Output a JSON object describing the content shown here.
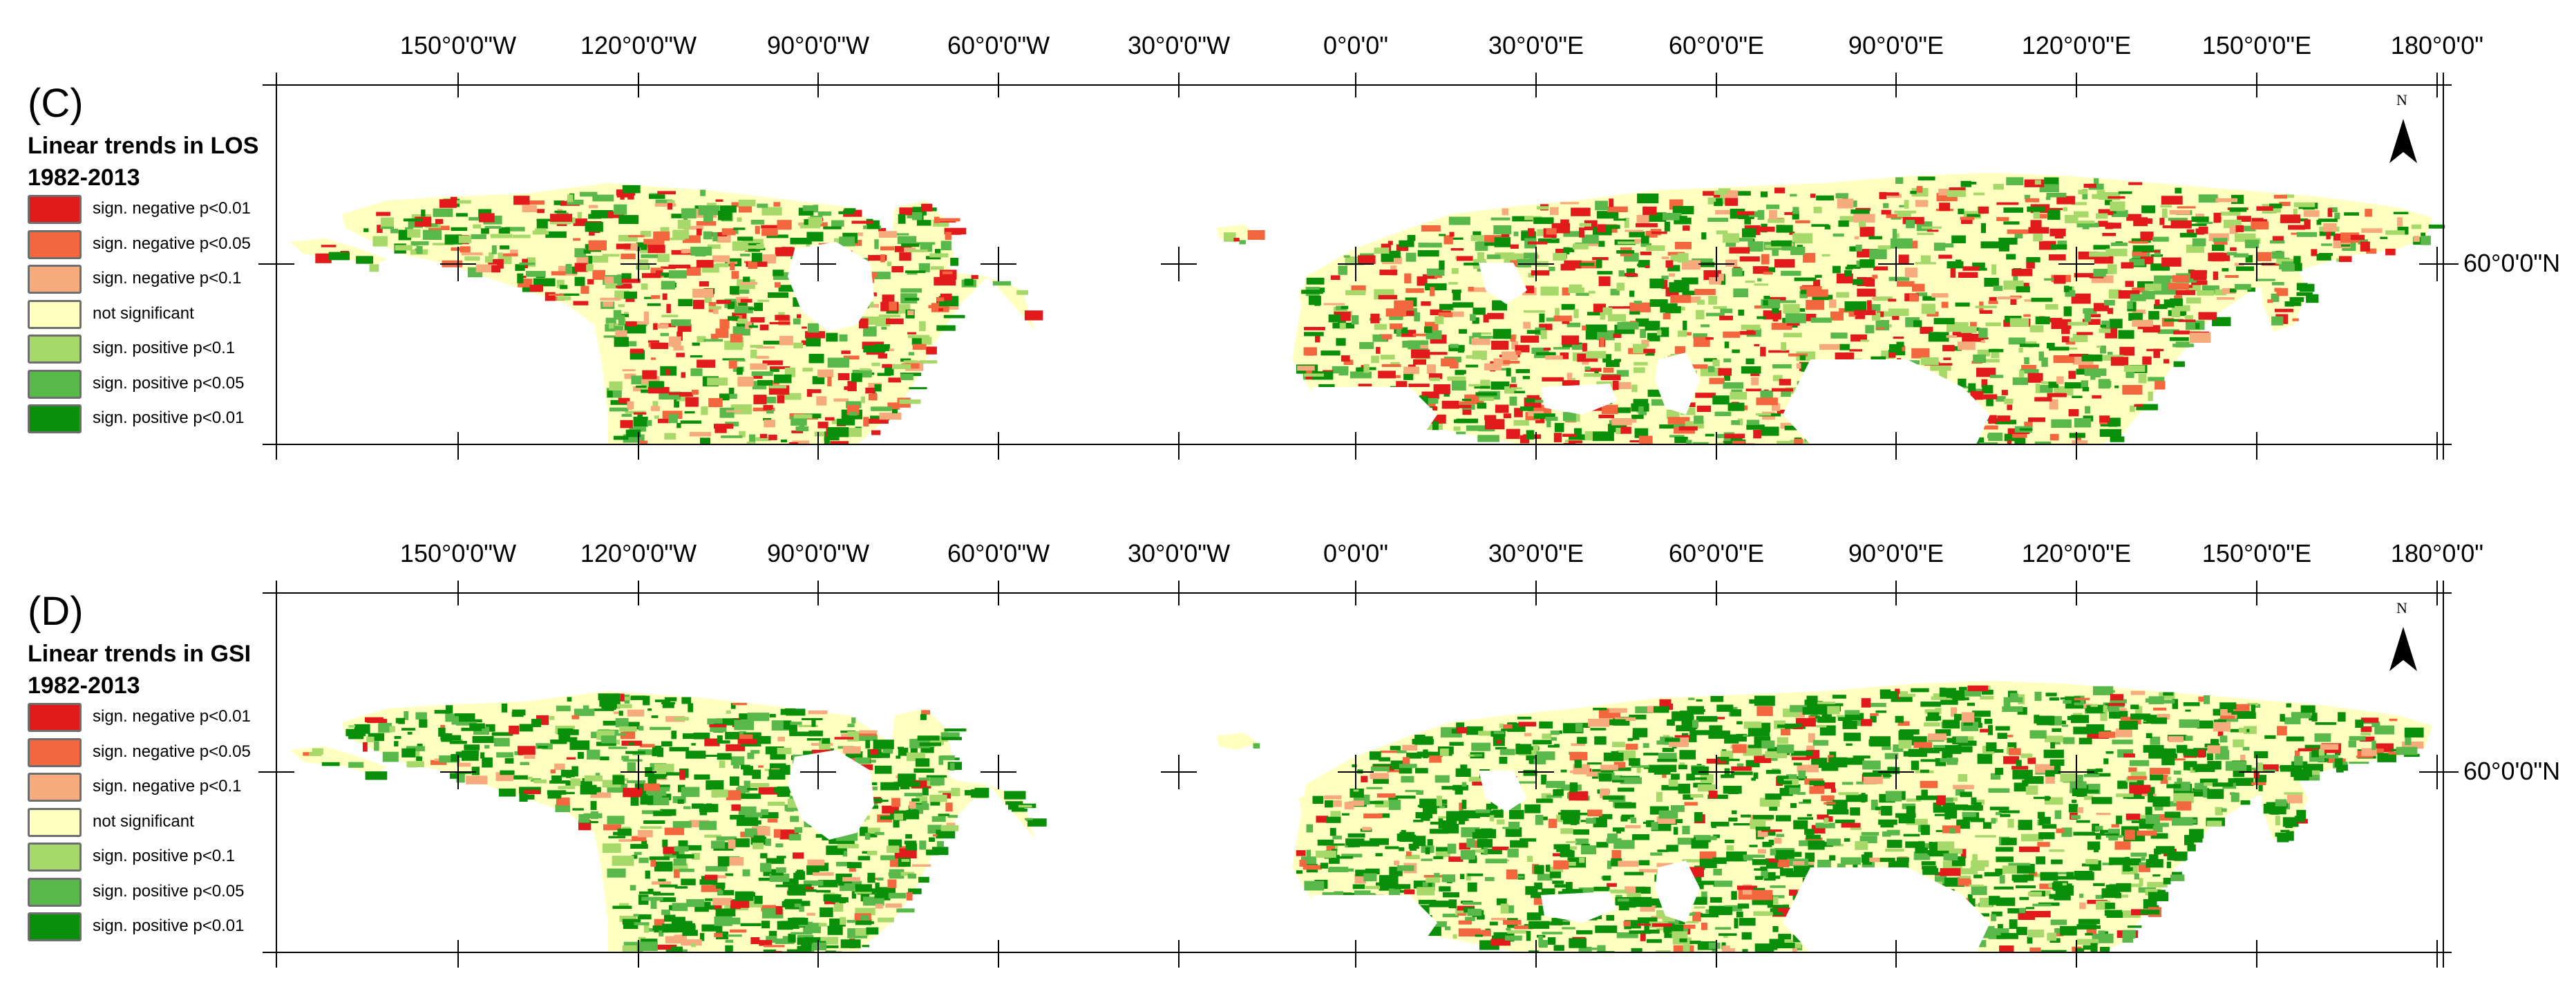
{
  "longitude_labels": [
    "150°0'0\"W",
    "120°0'0\"W",
    "90°0'0\"W",
    "60°0'0\"W",
    "30°0'0\"W",
    "0°0'0\"",
    "30°0'0\"E",
    "60°0'0\"E",
    "90°0'0\"E",
    "120°0'0\"E",
    "150°0'0\"E",
    "180°0'0\""
  ],
  "latitude_label": "60°0'0\"N",
  "north_letter": "N",
  "legend_items": [
    {
      "label": "sign. negative p<0.01",
      "color": "#e31a1c"
    },
    {
      "label": "sign. negative p<0.05",
      "color": "#f4673e"
    },
    {
      "label": "sign. negative p<0.1",
      "color": "#f7aa7c"
    },
    {
      "label": "not significant",
      "color": "#ffffc0"
    },
    {
      "label": "sign. positive p<0.1",
      "color": "#a6d96a"
    },
    {
      "label": "sign. positive p<0.05",
      "color": "#58b84a"
    },
    {
      "label": "sign. positive p<0.01",
      "color": "#0a8f0a"
    }
  ],
  "panels": [
    {
      "letter": "(C)",
      "title_line1": "Linear trends in LOS",
      "title_line2": "1982-2013"
    },
    {
      "letter": "(D)",
      "title_line1": "Linear trends in GSI",
      "title_line2": "1982-2013"
    }
  ]
}
